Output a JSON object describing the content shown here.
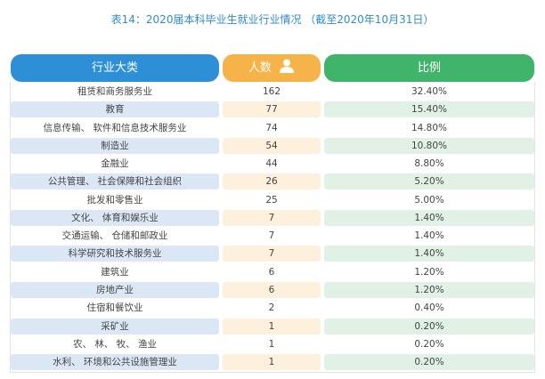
{
  "title": "表14：2020届本科毕业生就业行业情况 （截至2020年10月31日）",
  "table": {
    "headers": [
      "行业大类",
      "人数",
      "比例"
    ],
    "rows": [
      [
        "租赁和商务服务业",
        162,
        "32.40%"
      ],
      [
        "教育",
        77,
        "15.40%"
      ],
      [
        "信息传输、 软件和信息技术服务业",
        74,
        "14.80%"
      ],
      [
        "制造业",
        54,
        "10.80%"
      ],
      [
        "金融业",
        44,
        "8.80%"
      ],
      [
        "公共管理、 社会保障和社会组织",
        26,
        "5.20%"
      ],
      [
        "批发和零售业",
        25,
        "5.00%"
      ],
      [
        "文化、 体育和娱乐业",
        7,
        "1.40%"
      ],
      [
        "交通运输、 仓储和邮政业",
        7,
        "1.40%"
      ],
      [
        "科学研究和技术服务业",
        7,
        "1.40%"
      ],
      [
        "建筑业",
        6,
        "1.20%"
      ],
      [
        "房地产业",
        6,
        "1.20%"
      ],
      [
        "住宿和餐饮业",
        2,
        "0.40%"
      ],
      [
        "采矿业",
        1,
        "0.20%"
      ],
      [
        "农、 林、 牧、 渔业",
        1,
        "0.20%"
      ],
      [
        "水利、 环境和公共设施管理业",
        1,
        "0.20%"
      ]
    ]
  }
}
